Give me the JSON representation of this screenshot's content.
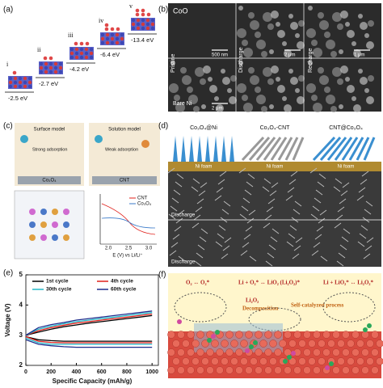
{
  "panel_a": {
    "label": "(a)",
    "stages": [
      "i",
      "ii",
      "iii",
      "iv",
      "v"
    ],
    "energies": [
      "-2.5 eV",
      "-2.7 eV",
      "-4.2 eV",
      "-6.4 eV",
      "-13.4 eV"
    ]
  },
  "panel_b": {
    "label": "(b)",
    "material": "CoO",
    "states": [
      "Pristine",
      "Discharge",
      "Recharge",
      "Bare Ni"
    ],
    "scale_bars": [
      "500 nm",
      "2 μm",
      "1 μm",
      "2 μm"
    ]
  },
  "panel_c": {
    "label": "(c)",
    "surface_model": "Surface model",
    "solution_model": "Solution model",
    "strong": "Strong adsorption",
    "weak": "Weak adsorption",
    "substrate_left": "Co₃O₄",
    "substrate_right": "CNT",
    "legend": [
      "CNT",
      "Co₃O₄"
    ],
    "xlabel": "E (V) vs Li/Li⁺",
    "xticks": [
      {
        "value": 2,
        "label": "2.0"
      },
      {
        "value": 2.5,
        "label": "2.5"
      },
      {
        "value": 3,
        "label": "3.0"
      }
    ]
  },
  "panel_d": {
    "label": "(d)",
    "columns": [
      "Co₃O₄@Ni",
      "Co₃O₄-CNT",
      "CNT@Co₃O₄"
    ],
    "substrate": "Ni foam",
    "rows": [
      "Discharge",
      "Discharge"
    ]
  },
  "panel_e": {
    "label": "(e)"
  },
  "chart_data": {
    "type": "line",
    "xlabel": "Specific Capacity (mAh/g)",
    "ylabel": "Voltage (V)",
    "x": [
      0,
      100,
      200,
      300,
      400,
      500,
      600,
      700,
      800,
      900,
      1000
    ],
    "xlim": [
      0,
      1050
    ],
    "xticks": [
      0,
      200,
      400,
      600,
      800,
      1000
    ],
    "ylim": [
      2,
      5
    ],
    "yticks": [
      2,
      3,
      4,
      5
    ],
    "series": [
      {
        "name": "1st cycle",
        "color": "#000000",
        "discharge": [
          2.95,
          2.85,
          2.82,
          2.8,
          2.8,
          2.8,
          2.8,
          2.8,
          2.8,
          2.8,
          2.8
        ],
        "charge": [
          3.0,
          3.1,
          3.2,
          3.28,
          3.34,
          3.4,
          3.45,
          3.5,
          3.55,
          3.6,
          3.65
        ]
      },
      {
        "name": "4th cycle",
        "color": "#e0201b",
        "discharge": [
          2.95,
          2.8,
          2.76,
          2.75,
          2.75,
          2.75,
          2.75,
          2.75,
          2.75,
          2.75,
          2.75
        ],
        "charge": [
          3.0,
          3.15,
          3.25,
          3.33,
          3.4,
          3.45,
          3.5,
          3.55,
          3.6,
          3.65,
          3.7
        ]
      },
      {
        "name": "30th cycle",
        "color": "#22b8c8",
        "discharge": [
          2.9,
          2.75,
          2.7,
          2.7,
          2.7,
          2.7,
          2.7,
          2.7,
          2.7,
          2.7,
          2.7
        ],
        "charge": [
          3.0,
          3.2,
          3.3,
          3.38,
          3.45,
          3.5,
          3.55,
          3.6,
          3.65,
          3.7,
          3.75
        ]
      },
      {
        "name": "60th cycle",
        "color": "#1d2c8c",
        "discharge": [
          2.85,
          2.7,
          2.65,
          2.62,
          2.6,
          2.6,
          2.6,
          2.6,
          2.6,
          2.6,
          2.6
        ],
        "charge": [
          3.0,
          3.25,
          3.35,
          3.42,
          3.5,
          3.55,
          3.6,
          3.65,
          3.7,
          3.75,
          3.8
        ]
      }
    ]
  },
  "panel_f": {
    "label": "(f)",
    "step1": "O₂ ↔ O₂*",
    "step2": "Li + O₂* ↔ LiO₂ (Li₂O₂)*",
    "step3": "Li + LiO₂* ↔ Li₂O₂*",
    "product": "Li₂O₂",
    "decomposition": "Decomposition",
    "self_catalyzed": "Self-catalyzed process"
  }
}
